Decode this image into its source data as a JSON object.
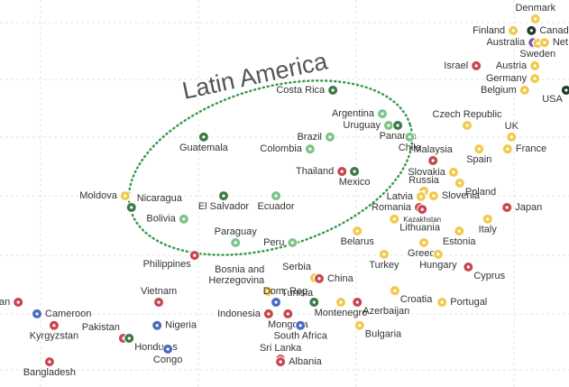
{
  "chart_data": {
    "type": "scatter",
    "annotation": "Latin America",
    "xlim": [
      0,
      100
    ],
    "ylim": [
      0,
      100
    ],
    "points": [
      {
        "label": "Costa Rica",
        "x": 58.5,
        "y": 76.7,
        "color": "#3e7a46"
      },
      {
        "label": "Argentina",
        "x": 67.2,
        "y": 70.6,
        "color": "#7cc48a"
      },
      {
        "label": "Uruguay",
        "x": 68.3,
        "y": 67.6,
        "color": "#7cc48a"
      },
      {
        "label": "Panama",
        "x": 69.9,
        "y": 67.6,
        "color": "#3e7a46"
      },
      {
        "label": "Chile",
        "x": 72.0,
        "y": 64.6,
        "color": "#7cc48a"
      },
      {
        "label": "Brazil",
        "x": 58.0,
        "y": 64.6,
        "color": "#7cc48a"
      },
      {
        "label": "Colombia",
        "x": 54.5,
        "y": 61.5,
        "color": "#7cc48a"
      },
      {
        "label": "Thailand",
        "x": 60.1,
        "y": 55.7,
        "color": "#c8474f"
      },
      {
        "label": "Mexico",
        "x": 62.3,
        "y": 55.7,
        "color": "#3e7a46"
      },
      {
        "label": "Guatemala",
        "x": 35.8,
        "y": 64.6,
        "color": "#3e7a46"
      },
      {
        "label": "El Salvador",
        "x": 39.3,
        "y": 49.4,
        "color": "#3e7a46"
      },
      {
        "label": "Ecuador",
        "x": 48.5,
        "y": 49.4,
        "color": "#7cc48a"
      },
      {
        "label": "Nicaragua",
        "x": 23.1,
        "y": 46.4,
        "color": "#3e7a46"
      },
      {
        "label": "Bolivia",
        "x": 32.3,
        "y": 43.4,
        "color": "#7cc48a"
      },
      {
        "label": "Moldova",
        "x": 22.0,
        "y": 49.4,
        "color": "#f2c94c"
      },
      {
        "label": "Paraguay",
        "x": 41.4,
        "y": 37.3,
        "color": "#7cc48a"
      },
      {
        "label": "Peru",
        "x": 51.4,
        "y": 37.3,
        "color": "#7cc48a"
      },
      {
        "label": "Philippines",
        "x": 34.2,
        "y": 34.0,
        "color": "#c8474f"
      },
      {
        "label": "Denmark",
        "x": 94.1,
        "y": 95.1,
        "color": "#f2c94c"
      },
      {
        "label": "Finland",
        "x": 90.2,
        "y": 92.1,
        "color": "#f2c94c"
      },
      {
        "label": "Canada",
        "x": 93.4,
        "y": 92.1,
        "color": "#1f3d2a"
      },
      {
        "label": "Australia",
        "x": 93.7,
        "y": 89.0,
        "color": "#7a4fb0"
      },
      {
        "label": "Sweden",
        "x": 94.5,
        "y": 88.8,
        "color": "#f2c94c"
      },
      {
        "label": "Net",
        "x": 95.7,
        "y": 89.0,
        "color": "#f2c94c"
      },
      {
        "label": "Israel",
        "x": 83.7,
        "y": 83.0,
        "color": "#c8474f"
      },
      {
        "label": "Austria",
        "x": 94.0,
        "y": 83.0,
        "color": "#f2c94c"
      },
      {
        "label": "Germany",
        "x": 94.0,
        "y": 79.7,
        "color": "#f2c94c"
      },
      {
        "label": "Belgium",
        "x": 92.2,
        "y": 76.7,
        "color": "#f2c94c"
      },
      {
        "label": "USA",
        "x": 99.5,
        "y": 76.7,
        "color": "#1f3d2a"
      },
      {
        "label": "Czech Republic",
        "x": 82.1,
        "y": 67.6,
        "color": "#f2c94c"
      },
      {
        "label": "UK",
        "x": 89.9,
        "y": 64.6,
        "color": "#f2c94c"
      },
      {
        "label": "France",
        "x": 89.2,
        "y": 61.5,
        "color": "#f2c94c"
      },
      {
        "label": "Malaysia",
        "x": 76.1,
        "y": 58.5,
        "color": "#c8474f"
      },
      {
        "label": "Spain",
        "x": 84.2,
        "y": 61.5,
        "color": "#f2c94c"
      },
      {
        "label": "Slovakia",
        "x": 79.7,
        "y": 55.5,
        "color": "#f2c94c"
      },
      {
        "label": "Poland",
        "x": 80.8,
        "y": 52.7,
        "color": "#f2c94c"
      },
      {
        "label": "Russia",
        "x": 74.5,
        "y": 50.6,
        "color": "#f2c94c"
      },
      {
        "label": "Latvia",
        "x": 74.0,
        "y": 49.2,
        "color": "#f2c94c"
      },
      {
        "label": "Slovenia",
        "x": 76.2,
        "y": 49.4,
        "color": "#f2c94c"
      },
      {
        "label": "Romania",
        "x": 73.7,
        "y": 46.4,
        "color": "#c8474f"
      },
      {
        "label": "Kazakhstan",
        "x": 74.2,
        "y": 45.9,
        "color": "#c8474f"
      },
      {
        "label": "Japan",
        "x": 89.1,
        "y": 46.4,
        "color": "#c8474f"
      },
      {
        "label": "Lithuania",
        "x": 69.3,
        "y": 43.4,
        "color": "#f2c94c"
      },
      {
        "label": "Italy",
        "x": 85.7,
        "y": 43.4,
        "color": "#f2c94c"
      },
      {
        "label": "Estonia",
        "x": 80.7,
        "y": 40.3,
        "color": "#f2c94c"
      },
      {
        "label": "Greece",
        "x": 74.5,
        "y": 37.3,
        "color": "#f2c94c"
      },
      {
        "label": "Belarus",
        "x": 62.8,
        "y": 40.3,
        "color": "#f2c94c"
      },
      {
        "label": "Turkey",
        "x": 67.5,
        "y": 34.3,
        "color": "#f2c94c"
      },
      {
        "label": "Hungary",
        "x": 77.0,
        "y": 34.3,
        "color": "#f2c94c"
      },
      {
        "label": "Cyprus",
        "x": 82.3,
        "y": 31.0,
        "color": "#c8474f"
      },
      {
        "label": "Serbia",
        "x": 55.3,
        "y": 28.2,
        "color": "#f2c94c"
      },
      {
        "label": "China",
        "x": 56.1,
        "y": 28.0,
        "color": "#c8474f"
      },
      {
        "label": [
          "Bosnia and",
          "Herzegovina"
        ],
        "x": 47.1,
        "y": 24.7,
        "color": "#f2c94c"
      },
      {
        "label": "Tunisia",
        "x": 48.5,
        "y": 21.9,
        "color": "#4a6cc0"
      },
      {
        "label": "Dom. Rep.",
        "x": 55.2,
        "y": 21.9,
        "color": "#3e7a46"
      },
      {
        "label": "Croatia",
        "x": 69.4,
        "y": 24.9,
        "color": "#f2c94c"
      },
      {
        "label": "Portugal",
        "x": 77.7,
        "y": 21.9,
        "color": "#f2c94c"
      },
      {
        "label": "Montenegro",
        "x": 59.9,
        "y": 21.9,
        "color": "#f2c94c"
      },
      {
        "label": "Azerbaijan",
        "x": 62.8,
        "y": 21.9,
        "color": "#c8474f"
      },
      {
        "label": "Indonesia",
        "x": 47.2,
        "y": 18.9,
        "color": "#c8474f"
      },
      {
        "label": "Mongolia",
        "x": 50.6,
        "y": 18.9,
        "color": "#c8474f"
      },
      {
        "label": "South Africa",
        "x": 52.8,
        "y": 15.9,
        "color": "#4a6cc0"
      },
      {
        "label": "Bulgaria",
        "x": 63.2,
        "y": 15.9,
        "color": "#f2c94c"
      },
      {
        "label": "Vietnam",
        "x": 27.9,
        "y": 21.9,
        "color": "#c8474f"
      },
      {
        "label": "Pakistan",
        "x": 21.7,
        "y": 12.6,
        "color": "#c8474f"
      },
      {
        "label": "Honduras",
        "x": 22.7,
        "y": 12.6,
        "color": "#3e7a46"
      },
      {
        "label": "Nigeria",
        "x": 27.6,
        "y": 15.9,
        "color": "#4a6cc0"
      },
      {
        "label": "Congo",
        "x": 29.5,
        "y": 9.8,
        "color": "#4a6cc0"
      },
      {
        "label": "Sri Lanka",
        "x": 49.3,
        "y": 7.2,
        "color": "#c8474f"
      },
      {
        "label": "Albania",
        "x": 49.3,
        "y": 6.5,
        "color": "#c8474f"
      },
      {
        "label": "Cameroon",
        "x": 6.5,
        "y": 18.9,
        "color": "#4a6cc0"
      },
      {
        "label": "tan",
        "x": 3.2,
        "y": 21.9,
        "color": "#c8474f"
      },
      {
        "label": "Kyrgyzstan",
        "x": 9.5,
        "y": 15.9,
        "color": "#c8474f"
      },
      {
        "label": "Bangladesh",
        "x": 8.7,
        "y": 6.5,
        "color": "#c8474f"
      }
    ]
  }
}
